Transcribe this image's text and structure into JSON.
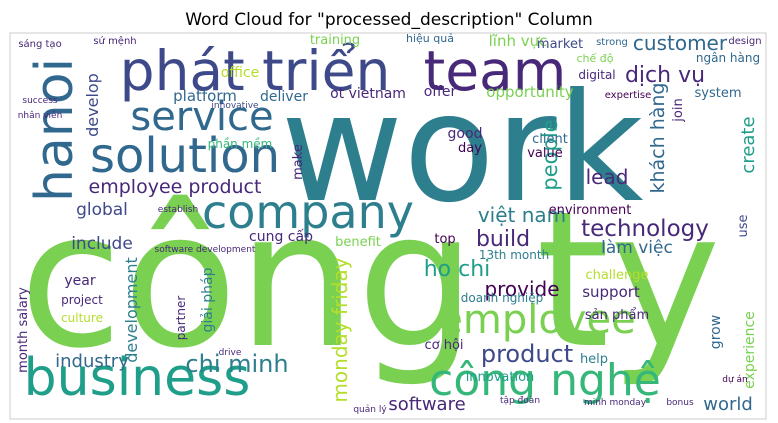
{
  "chart_data": {
    "type": "wordcloud",
    "title": "Word Cloud for \"processed_description\" Column",
    "words": [
      "work",
      "công ty",
      "phát triển",
      "team",
      "hanoi",
      "solution",
      "service",
      "company",
      "business",
      "công nghệ",
      "employee",
      "employee product",
      "global",
      "develop",
      "platform",
      "deliver",
      "office",
      "ot vietnam",
      "customer",
      "lĩnh vực",
      "market",
      "dịch vụ",
      "chế độ",
      "digital",
      "ngân hàng",
      "system",
      "opportunity",
      "offer",
      "khách hàng",
      "create",
      "technology",
      "việt nam",
      "lead",
      "people",
      "build",
      "làm việc",
      "ho chi",
      "chi minh",
      "product",
      "software",
      "world",
      "industry",
      "include",
      "provide",
      "monday friday",
      "development",
      "cung cấp",
      "benefit",
      "top",
      "13th month",
      "year",
      "month salary",
      "project",
      "culture",
      "giải pháp",
      "partner",
      "challenge",
      "support",
      "sản phẩm",
      "help",
      "grow",
      "experience",
      "cơ hội",
      "doanh nghiệp",
      "innovation",
      "make",
      "phần mềm",
      "good",
      "day",
      "client",
      "value",
      "environment",
      "training",
      "sáng tạo",
      "sứ mệnh",
      "hiệu quả",
      "strong",
      "design",
      "use",
      "expertise",
      "join",
      "nhân viên",
      "success",
      "innovative",
      "software development",
      "establish",
      "drive",
      "quản lý",
      "tập đoàn",
      "minh monday",
      "bonus",
      "dự án"
    ]
  }
}
